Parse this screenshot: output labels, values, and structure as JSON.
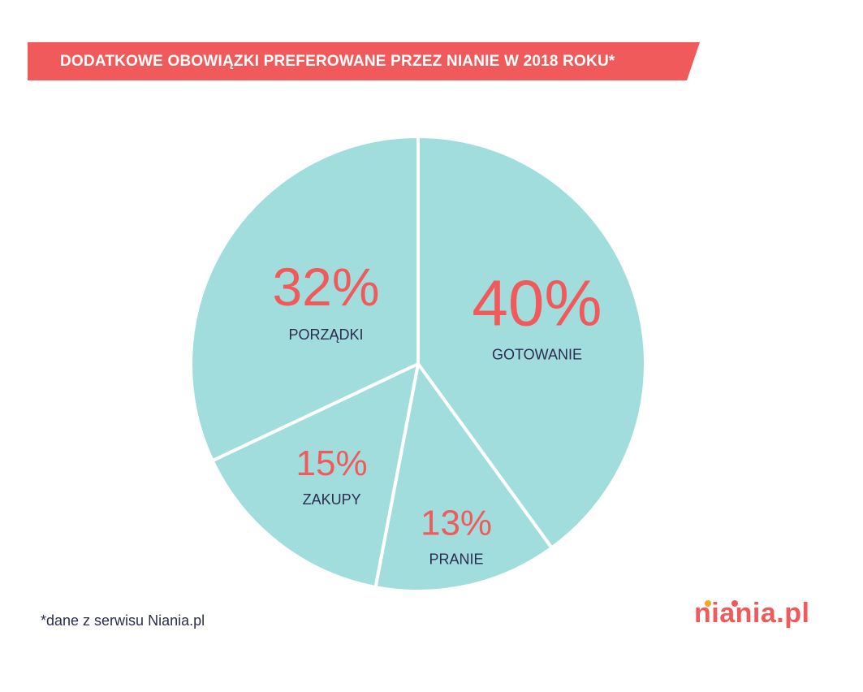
{
  "title": "DODATKOWE OBOWIĄZKI PREFEROWANE PRZEZ NIANIE W 2018 ROKU*",
  "footnote": "*dane z serwisu Niania.pl",
  "logo_text": "niania.pl",
  "colors": {
    "banner": "#f15a5a",
    "slice": "#a2dddd",
    "percent": "#f15a5a",
    "label": "#2b2d4e",
    "logo_dot_1": "#f6a623",
    "logo_dot_2": "#f15a5a"
  },
  "chart_data": {
    "type": "pie",
    "title": "DODATKOWE OBOWIĄZKI PREFEROWANE PRZEZ NIANIE W 2018 ROKU*",
    "slices": [
      {
        "label": "GOTOWANIE",
        "value": 40,
        "display": "40%"
      },
      {
        "label": "PRANIE",
        "value": 13,
        "display": "13%"
      },
      {
        "label": "ZAKUPY",
        "value": 15,
        "display": "15%"
      },
      {
        "label": "PORZĄDKI",
        "value": 32,
        "display": "32%"
      }
    ],
    "start": "12 o'clock",
    "direction": "clockwise"
  }
}
